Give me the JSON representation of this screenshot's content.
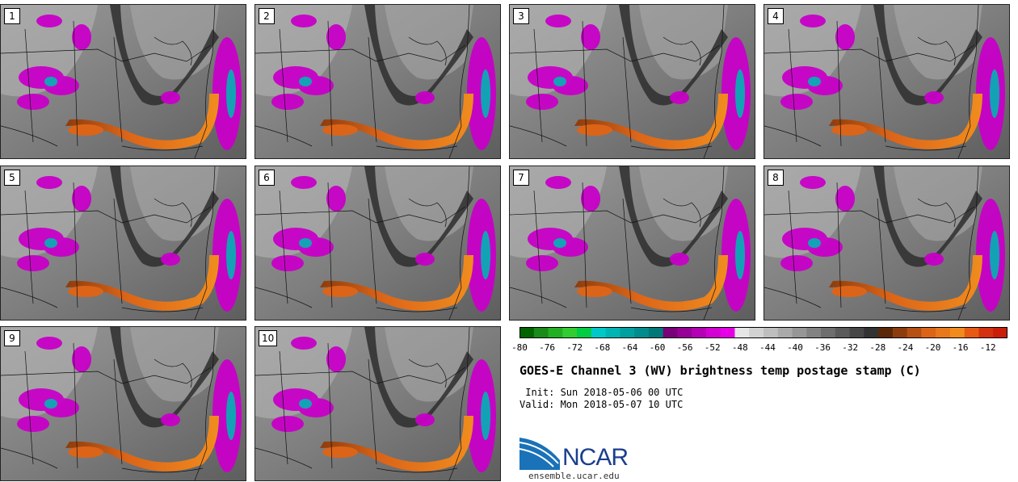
{
  "panels": [
    {
      "label": "1"
    },
    {
      "label": "2"
    },
    {
      "label": "3"
    },
    {
      "label": "4"
    },
    {
      "label": "5"
    },
    {
      "label": "6"
    },
    {
      "label": "7"
    },
    {
      "label": "8"
    },
    {
      "label": "9"
    },
    {
      "label": "10"
    }
  ],
  "colorbar": {
    "colors": [
      "#006400",
      "#1a8a1a",
      "#22b022",
      "#33cc33",
      "#00cc44",
      "#00c8c8",
      "#00b4b4",
      "#00a0a0",
      "#008c8c",
      "#007878",
      "#780078",
      "#960096",
      "#b400b4",
      "#d200d2",
      "#e600e6",
      "#e6e6e6",
      "#d2d2d2",
      "#bebebe",
      "#aaaaaa",
      "#969696",
      "#828282",
      "#6e6e6e",
      "#5a5a5a",
      "#464646",
      "#323232",
      "#5a2808",
      "#8c3c0c",
      "#b45014",
      "#dc6418",
      "#e8781c",
      "#f08c1e",
      "#e65a14",
      "#d2320f",
      "#c81e0a"
    ],
    "tick_labels": [
      "-80",
      "-76",
      "-72",
      "-68",
      "-64",
      "-60",
      "-56",
      "-52",
      "-48",
      "-44",
      "-40",
      "-36",
      "-32",
      "-28",
      "-24",
      "-20",
      "-16",
      "-12"
    ]
  },
  "title": "GOES-E Channel 3 (WV) brightness temp postage stamp (C)",
  "init_line": " Init: Sun 2018-05-06 00 UTC",
  "valid_line": "Valid: Mon 2018-05-07 10 UTC",
  "brand": {
    "name": "NCAR",
    "site": "ensemble.ucar.edu"
  }
}
